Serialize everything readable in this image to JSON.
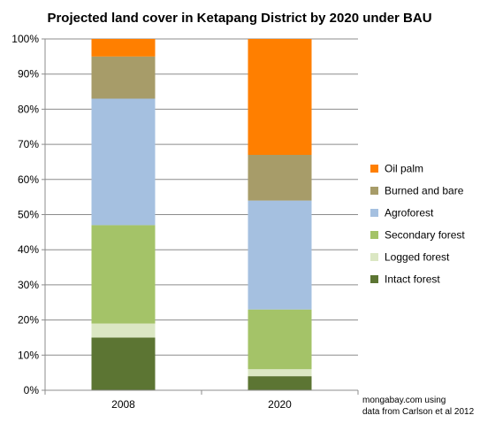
{
  "chart_data": {
    "type": "bar",
    "stacked": true,
    "title": "Projected land cover in Ketapang District by 2020 under BAU",
    "xlabel": "",
    "ylabel": "",
    "categories": [
      "2008",
      "2020"
    ],
    "ylim": [
      0,
      100
    ],
    "y_ticks": [
      "0%",
      "10%",
      "20%",
      "30%",
      "40%",
      "50%",
      "60%",
      "70%",
      "80%",
      "90%",
      "100%"
    ],
    "grid": true,
    "legend_position": "right",
    "series": [
      {
        "name": "Intact forest",
        "values": [
          15,
          4
        ],
        "color": "#5c7533"
      },
      {
        "name": "Logged forest",
        "values": [
          4,
          2
        ],
        "color": "#dbe7c3"
      },
      {
        "name": "Secondary forest",
        "values": [
          28,
          17
        ],
        "color": "#a4c368"
      },
      {
        "name": "Agroforest",
        "values": [
          36,
          31
        ],
        "color": "#a5c0e0"
      },
      {
        "name": "Burned and bare",
        "values": [
          12,
          13
        ],
        "color": "#a79c69"
      },
      {
        "name": "Oil palm",
        "values": [
          5,
          33
        ],
        "color": "#ff7f00"
      }
    ]
  },
  "credit": {
    "line1": "mongabay.com using",
    "line2": "data from Carlson et al 2012"
  }
}
